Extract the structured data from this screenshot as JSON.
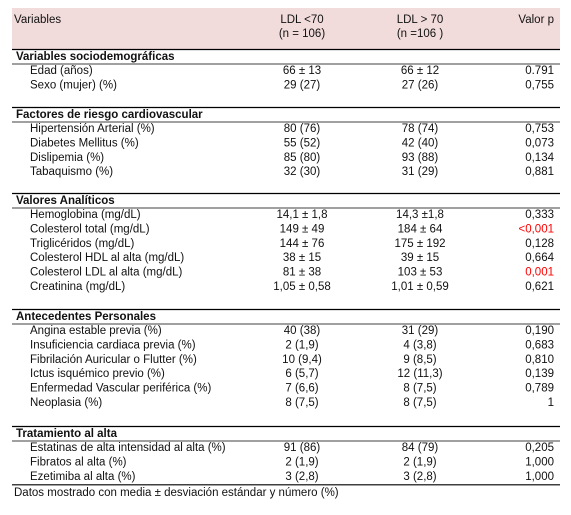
{
  "table": {
    "header": {
      "variable": "Variables",
      "group1": [
        "LDL <70",
        "(n = 106)"
      ],
      "group2": [
        "LDL > 70",
        "(n =106 )"
      ],
      "p": "Valor p"
    },
    "sections": [
      {
        "title": "Variables sociodemográficas",
        "rows": [
          {
            "cells": [
              "Edad (años)",
              "66 ± 13",
              "66 ± 12",
              "0.791"
            ]
          },
          {
            "cells": [
              "Sexo (mujer) (%)",
              "29 (27)",
              "27 (26)",
              "0,755"
            ]
          }
        ]
      },
      {
        "title": "Factores de riesgo cardiovascular",
        "rows": [
          {
            "cells": [
              "Hipertensión Arterial (%)",
              "80 (76)",
              "78 (74)",
              "0,753"
            ]
          },
          {
            "cells": [
              "Diabetes Mellitus (%)",
              "55 (52)",
              "42 (40)",
              "0,073"
            ]
          },
          {
            "cells": [
              "Dislipemia (%)",
              "85 (80)",
              "93 (88)",
              "0,134"
            ]
          },
          {
            "cells": [
              "Tabaquismo (%)",
              "32 (30)",
              "31 (29)",
              "0,881"
            ]
          }
        ]
      },
      {
        "title": "Valores Analíticos",
        "rows": [
          {
            "cells": [
              "Hemoglobina (mg/dL)",
              "14,1 ± 1,8",
              "14,3 ±1,8",
              "0,333"
            ]
          },
          {
            "cells": [
              "Colesterol total (mg/dL)",
              "149 ± 49",
              "184 ± 64",
              "<0,001"
            ],
            "p_color": "#ff0000"
          },
          {
            "cells": [
              "Triglicéridos (mg/dL)",
              "144 ± 76",
              "175 ± 192",
              "0,128"
            ]
          },
          {
            "cells": [
              "Colesterol HDL al alta (mg/dL)",
              "38 ± 15",
              "39 ± 15",
              "0,664"
            ]
          },
          {
            "cells": [
              "Colesterol LDL al alta (mg/dL)",
              "81 ± 38",
              "103 ± 53",
              "0,001"
            ],
            "p_color": "#ff0000"
          },
          {
            "cells": [
              "Creatinina (mg/dL)",
              "1,05 ± 0,58",
              "1,01 ± 0,59",
              "0,621"
            ]
          }
        ]
      },
      {
        "title": "Antecedentes Personales",
        "rows": [
          {
            "cells": [
              "Angina estable previa (%)",
              "40 (38)",
              "31 (29)",
              "0,190"
            ]
          },
          {
            "cells": [
              "Insuficiencia cardiaca previa (%)",
              "2 (1,9)",
              "4 (3,8)",
              "0,683"
            ]
          },
          {
            "cells": [
              "Fibrilación Auricular o Flutter (%)",
              "10 (9,4)",
              "9 (8,5)",
              "0,810"
            ]
          },
          {
            "cells": [
              "Ictus isquémico previo (%)",
              "6 (5,7)",
              "12 (11,3)",
              "0,139"
            ]
          },
          {
            "cells": [
              "Enfermedad Vascular periférica (%)",
              "7 (6,6)",
              "8 (7,5)",
              "0,789"
            ]
          },
          {
            "cells": [
              "Neoplasia (%)",
              "8 (7,5)",
              "8 (7,5)",
              "1"
            ]
          }
        ]
      },
      {
        "title": "Tratamiento al alta",
        "rows": [
          {
            "cells": [
              "Estatinas de alta intensidad al alta (%)",
              "91 (86)",
              "84 (79)",
              "0,205"
            ]
          },
          {
            "cells": [
              "Fibratos al alta (%)",
              "2 (1,9)",
              "2 (1,9)",
              "1,000"
            ]
          },
          {
            "cells": [
              "Ezetimiba al alta (%)",
              "3 (2,8)",
              "3 (2,8)",
              "1,000"
            ]
          }
        ]
      }
    ]
  },
  "footnote": "Datos mostrado con media ± desviación estándar y número (%)"
}
